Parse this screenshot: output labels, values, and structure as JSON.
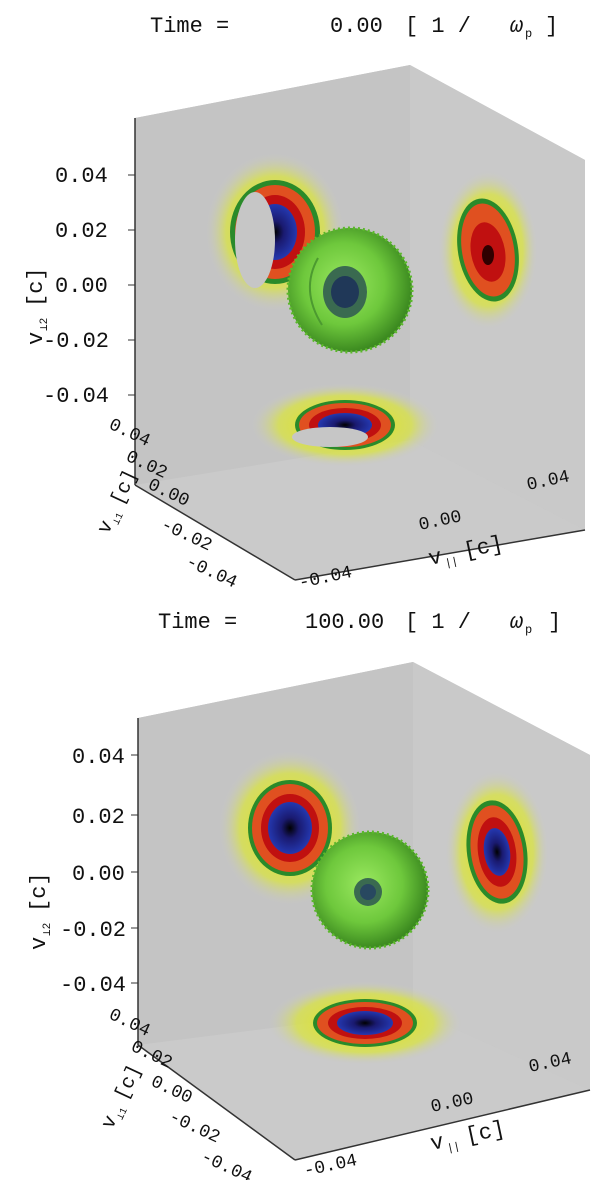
{
  "panels": [
    {
      "time_label": "Time =",
      "time_value": "0.00",
      "time_unit_open": "[ 1 /",
      "time_unit_symbol": "ω",
      "time_unit_sub": "p",
      "time_unit_close": "]",
      "axis_v_perp2_label": "v",
      "axis_v_perp2_sub": "⊥2",
      "axis_v_perp2_unit": "[c]",
      "axis_v_perp1_label": "v",
      "axis_v_perp1_sub": "⊥1",
      "axis_v_perp1_unit": "[c]",
      "axis_v_par_label": "v",
      "axis_v_par_sub": "||",
      "axis_v_par_unit": "[c]",
      "vertical_ticks": [
        "0.04",
        "0.02",
        "0.00",
        "-0.02",
        "-0.04"
      ],
      "depth_ticks": [
        "0.04",
        "0.02",
        "0.00",
        "-0.02",
        "-0.04"
      ],
      "horizontal_ticks": [
        "-0.04",
        "0.00",
        "0.04"
      ]
    },
    {
      "time_label": "Time =",
      "time_value": "100.00",
      "time_unit_open": "[ 1 /",
      "time_unit_symbol": "ω",
      "time_unit_sub": "p",
      "time_unit_close": "]",
      "axis_v_perp2_label": "v",
      "axis_v_perp2_sub": "⊥2",
      "axis_v_perp2_unit": "[c]",
      "axis_v_perp1_label": "v",
      "axis_v_perp1_sub": "⊥1",
      "axis_v_perp1_unit": "[c]",
      "axis_v_par_label": "v",
      "axis_v_par_sub": "||",
      "axis_v_par_unit": "[c]",
      "vertical_ticks": [
        "0.04",
        "0.02",
        "0.00",
        "-0.02",
        "-0.04"
      ],
      "depth_ticks": [
        "0.04",
        "0.02",
        "0.00",
        "-0.02",
        "-0.04"
      ],
      "horizontal_ticks": [
        "-0.04",
        "0.00",
        "0.04"
      ]
    }
  ],
  "colors": {
    "box_face": "#c9c9c9",
    "box_shade": "#bdbdbd",
    "contour_outer": "#e8e600",
    "contour_mid": "#e05020",
    "contour_inner": "#c01010",
    "contour_core": "#2030a0",
    "sphere": "#6ec83c"
  }
}
